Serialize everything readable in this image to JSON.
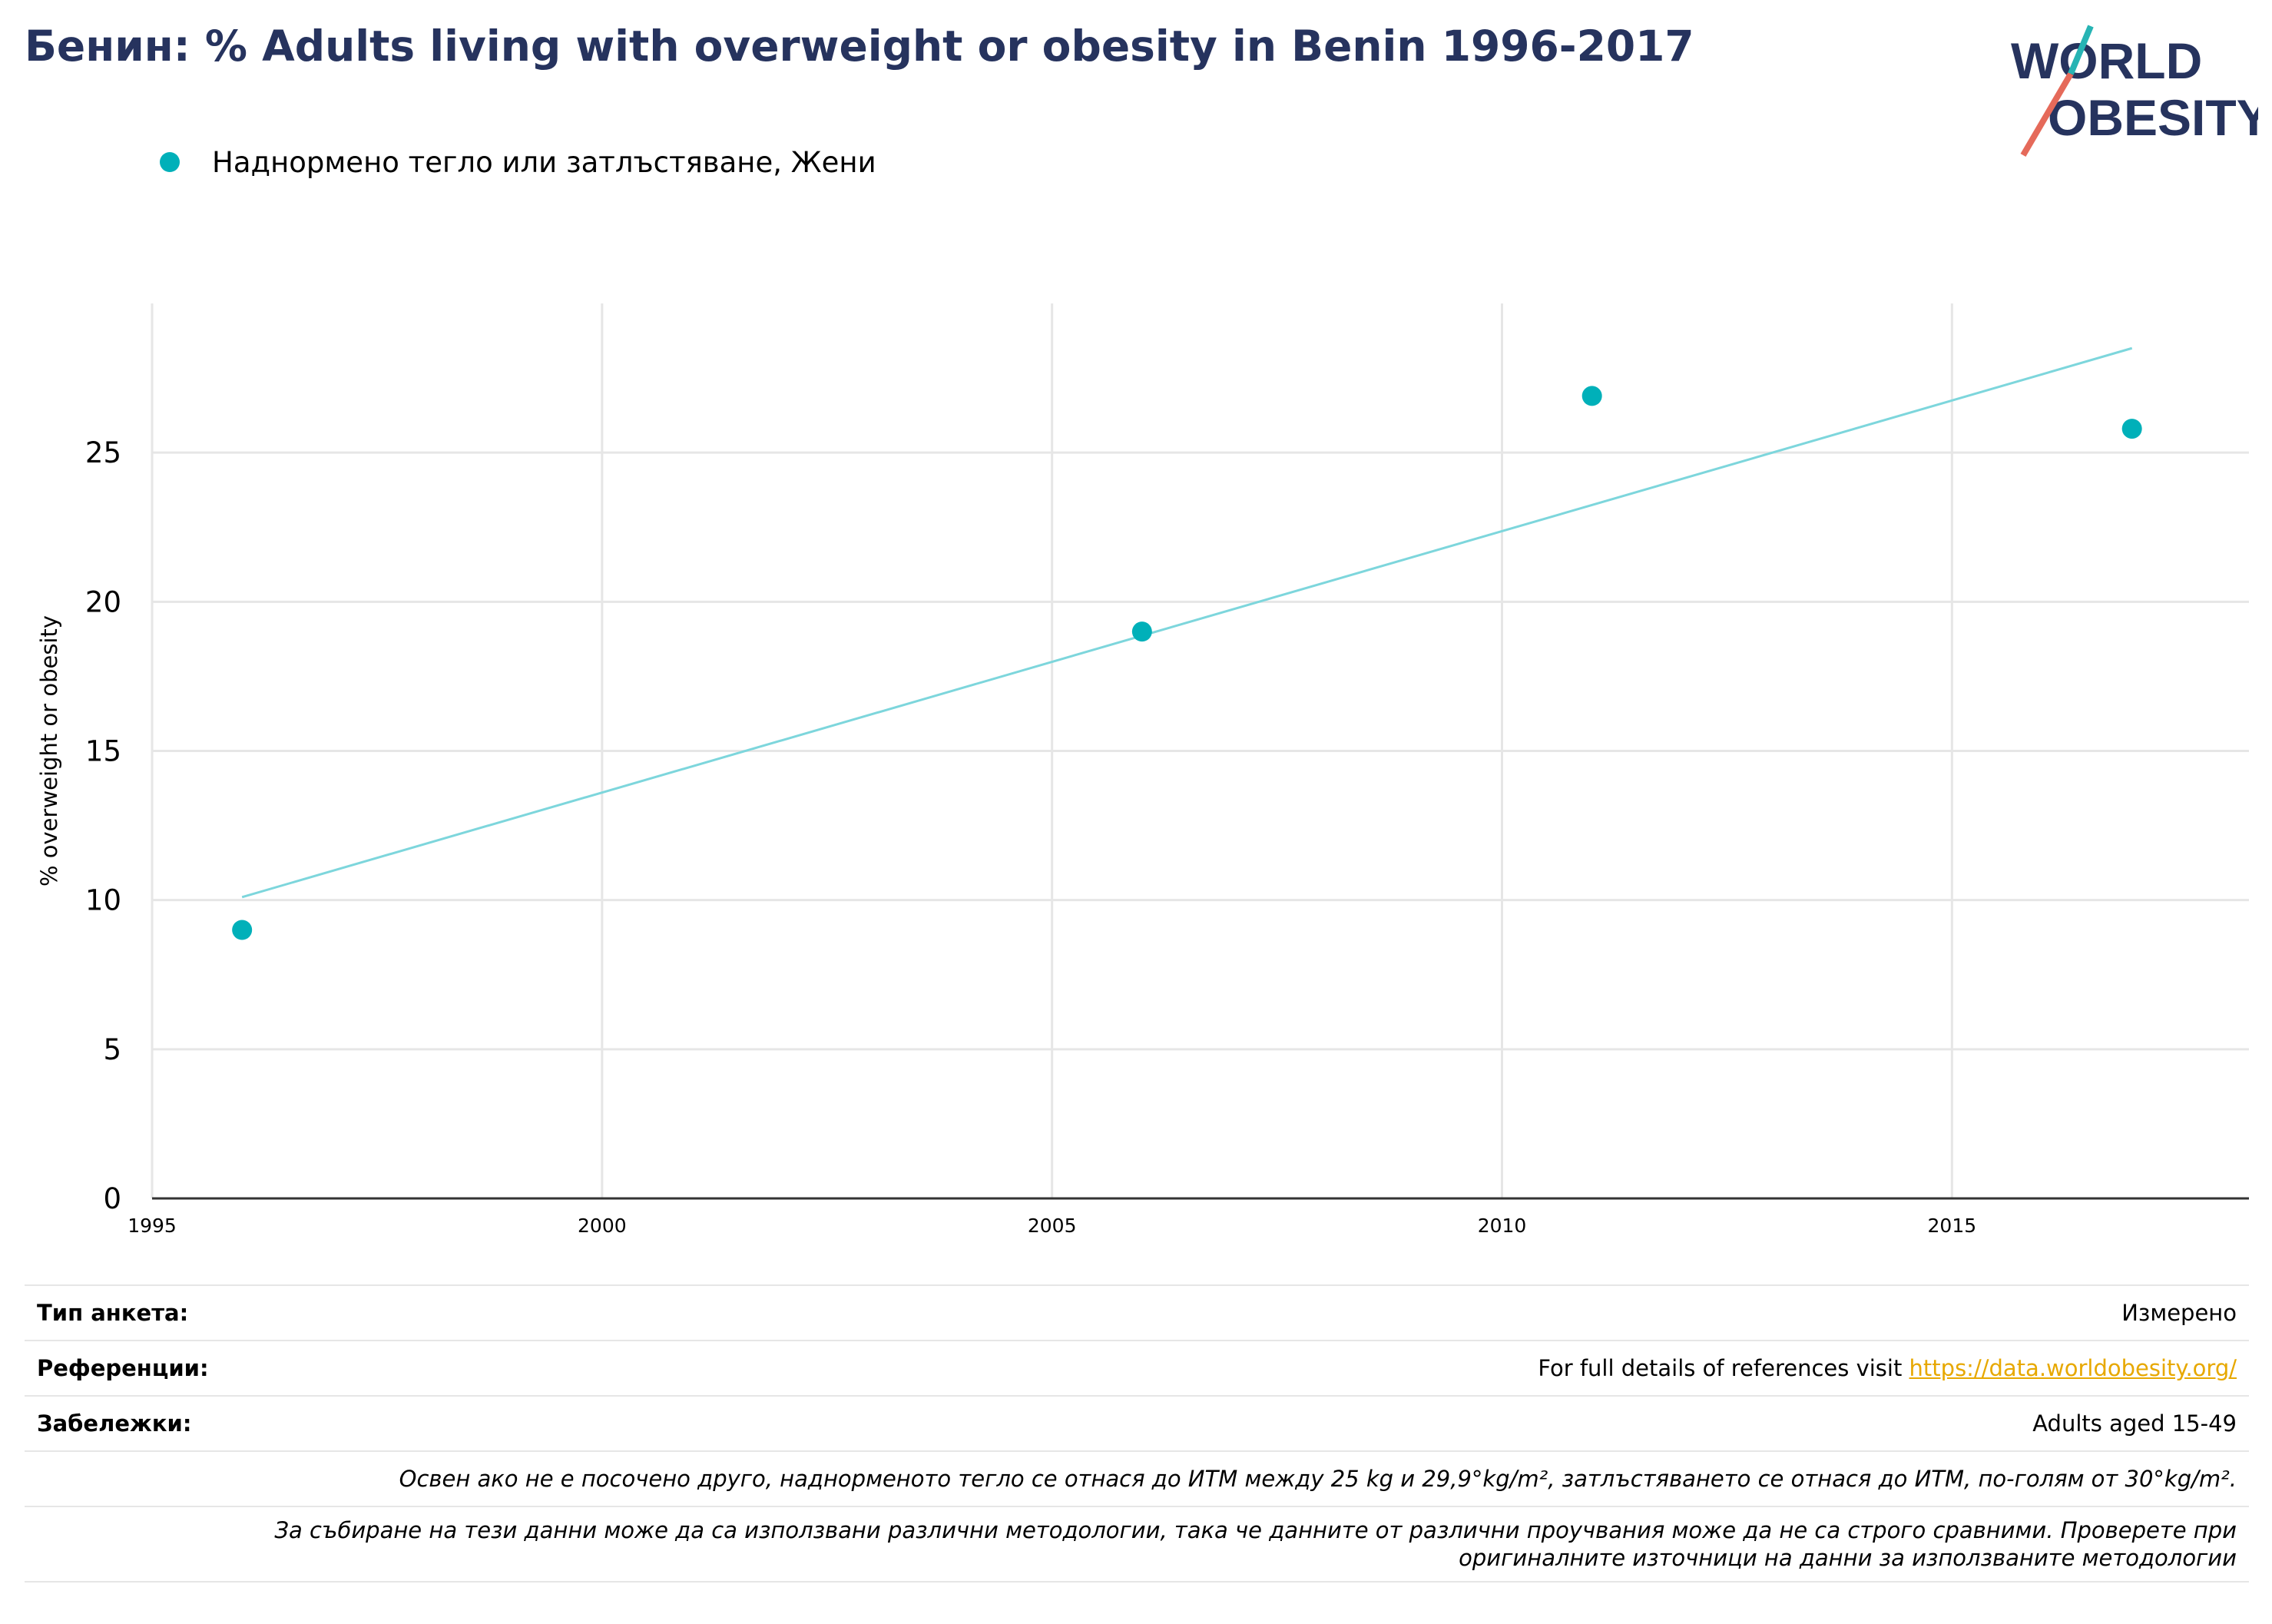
{
  "title": "Бенин: % Adults living with overweight or obesity in Benin 1996-2017",
  "logo": {
    "line1": "WORLD",
    "line2": "OBESITY"
  },
  "legend": {
    "label": "Наднормено тегло или затлъстяване, Жени",
    "color": "#00b0b9"
  },
  "colors": {
    "points": "#00b0b9",
    "trend": "#7dd6dc",
    "grid": "#e6e6e6",
    "title": "#26335e",
    "logo_navy": "#26335e",
    "logo_teal": "#27b4b4",
    "logo_coral": "#e56a5a",
    "link": "#e7a800"
  },
  "chart_data": {
    "type": "scatter",
    "ylabel": "% overweight or obesity",
    "xlim": [
      1995,
      2018.3
    ],
    "ylim": [
      0,
      30
    ],
    "x_ticks": [
      1995,
      2000,
      2005,
      2010,
      2015
    ],
    "y_ticks": [
      0,
      5,
      10,
      15,
      20,
      25
    ],
    "grid": true,
    "series": [
      {
        "name": "Наднормено тегло или затлъстяване, Жени",
        "points": [
          {
            "x": 1996,
            "y": 9.0
          },
          {
            "x": 2006,
            "y": 19.0
          },
          {
            "x": 2011,
            "y": 26.9
          },
          {
            "x": 2017,
            "y": 25.8
          }
        ],
        "trendline": [
          {
            "x": 1996,
            "y": 10.1
          },
          {
            "x": 2017,
            "y": 28.5
          }
        ]
      }
    ]
  },
  "info": {
    "survey_type_label": "Тип анкета:",
    "survey_type_value": "Измерено",
    "references_label": "Референции:",
    "references_text": "For full details of references visit ",
    "references_link": "https://data.worldobesity.org/",
    "notes_label": "Забележки:",
    "notes_value": "Adults aged 15-49",
    "note_definition": "Освен ако не е посочено друго, наднорменото тегло се отнася до ИТМ между 25 kg и 29,9°kg/m², затлъстяването се отнася до ИТМ, по-голям от 30°kg/m².",
    "note_methodology_1": "За събиране на тези данни може да са използвани различни методологии, така че данните от различни проучвания може да не са строго сравними. Проверете при",
    "note_methodology_2": "оригиналните източници на данни за използваните методологии"
  }
}
